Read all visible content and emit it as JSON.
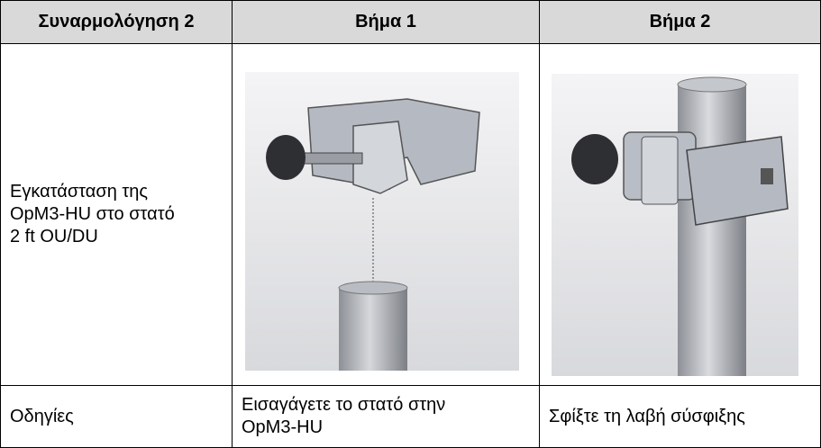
{
  "table": {
    "header": [
      "Συναρμολόγηση 2",
      "Βήμα 1",
      "Βήμα 2"
    ],
    "rows": [
      [
        "Εγκατάσταση της OpM3-HU στο στατό 2 ft OU/DU"
      ],
      [
        "Οδηγίες",
        "Εισαγάγετε το στατό στην OpM3-HU",
        "Σφίξτε τη λαβή σύσφιξης"
      ]
    ]
  }
}
